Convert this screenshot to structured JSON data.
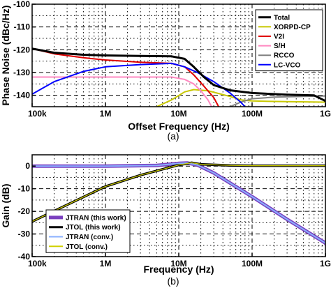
{
  "chart_data": [
    {
      "type": "line",
      "caption": "(a)",
      "xlabel": "Offset Frequency (Hz)",
      "ylabel": "Phase Noise (dBc/Hz)",
      "xscale": "log",
      "xlim": [
        100000,
        1000000000
      ],
      "ylim": [
        -145,
        -100
      ],
      "xticks": [
        {
          "value": 100000,
          "label": "100k"
        },
        {
          "value": 1000000,
          "label": "1M"
        },
        {
          "value": 10000000,
          "label": "10M"
        },
        {
          "value": 100000000,
          "label": "100M"
        },
        {
          "value": 1000000000,
          "label": "1G"
        }
      ],
      "yticks": [
        {
          "value": -100,
          "label": "-100"
        },
        {
          "value": -110,
          "label": "-110"
        },
        {
          "value": -120,
          "label": "-120"
        },
        {
          "value": -130,
          "label": "-130"
        },
        {
          "value": -140,
          "label": "-140"
        }
      ],
      "grid": true,
      "legend_position": "top-right",
      "series": [
        {
          "name": "Total",
          "color": "#000000",
          "points": [
            [
              100000,
              -119.5
            ],
            [
              200000,
              -121.3
            ],
            [
              500000,
              -122.2
            ],
            [
              1000000,
              -122.5
            ],
            [
              3000000,
              -122.7
            ],
            [
              8000000,
              -122.9
            ],
            [
              12000000,
              -124
            ],
            [
              16000000,
              -127.5
            ],
            [
              22000000,
              -132
            ],
            [
              30000000,
              -135.5
            ],
            [
              50000000,
              -137.8
            ],
            [
              100000000,
              -139
            ],
            [
              300000000,
              -139.7
            ],
            [
              700000000,
              -140
            ],
            [
              1000000000,
              -142.5
            ]
          ]
        },
        {
          "name": "XORPD-CP",
          "color": "#c8c800",
          "points": [
            [
              5000000,
              -145
            ],
            [
              8000000,
              -142
            ],
            [
              12000000,
              -138.5
            ],
            [
              16000000,
              -137.5
            ],
            [
              25000000,
              -138
            ],
            [
              50000000,
              -140.5
            ],
            [
              70000000,
              -142
            ],
            [
              100000000,
              -142.5
            ],
            [
              300000000,
              -142.8
            ],
            [
              1000000000,
              -143
            ]
          ]
        },
        {
          "name": "V2I",
          "color": "#e00000",
          "points": [
            [
              100000,
              -119.5
            ],
            [
              200000,
              -121.8
            ],
            [
              500000,
              -123.5
            ],
            [
              1000000,
              -124.5
            ],
            [
              3000000,
              -125.5
            ],
            [
              8000000,
              -126
            ],
            [
              12000000,
              -127.5
            ],
            [
              16000000,
              -131
            ],
            [
              22000000,
              -136
            ],
            [
              30000000,
              -141
            ],
            [
              35000000,
              -145
            ]
          ]
        },
        {
          "name": "S/H",
          "color": "#ff88c0",
          "points": [
            [
              100000,
              -132
            ],
            [
              1000000,
              -132
            ],
            [
              8000000,
              -132
            ],
            [
              12000000,
              -133
            ],
            [
              16000000,
              -135
            ],
            [
              20000000,
              -138
            ],
            [
              25000000,
              -142
            ],
            [
              28000000,
              -145
            ]
          ]
        },
        {
          "name": "RCCO",
          "color": "#808080",
          "points": [
            [
              50000000,
              -145
            ],
            [
              70000000,
              -143
            ],
            [
              100000000,
              -141.5
            ],
            [
              200000000,
              -140.8
            ],
            [
              500000000,
              -140.5
            ],
            [
              1000000000,
              -140.3
            ]
          ]
        },
        {
          "name": "LC-VCO",
          "color": "#0000ff",
          "points": [
            [
              100000,
              -139.5
            ],
            [
              200000,
              -134
            ],
            [
              500000,
              -129.5
            ],
            [
              1000000,
              -127.5
            ],
            [
              3000000,
              -126.5
            ],
            [
              8000000,
              -126
            ],
            [
              12000000,
              -127.5
            ],
            [
              18000000,
              -130
            ],
            [
              30000000,
              -134
            ],
            [
              50000000,
              -139
            ],
            [
              70000000,
              -143
            ],
            [
              80000000,
              -145
            ]
          ]
        }
      ]
    },
    {
      "type": "line",
      "caption": "(b)",
      "xlabel": "Frequency (Hz)",
      "ylabel": "Gain (dB)",
      "xscale": "log",
      "xlim": [
        100000,
        1000000000
      ],
      "ylim": [
        -40,
        5
      ],
      "xticks": [
        {
          "value": 100000,
          "label": "100k"
        },
        {
          "value": 1000000,
          "label": "1M"
        },
        {
          "value": 10000000,
          "label": "10M"
        },
        {
          "value": 100000000,
          "label": "100M"
        },
        {
          "value": 1000000000,
          "label": "1G"
        }
      ],
      "yticks": [
        {
          "value": 0,
          "label": "0"
        },
        {
          "value": -10,
          "label": "-10"
        },
        {
          "value": -20,
          "label": "-20"
        },
        {
          "value": -30,
          "label": "-30"
        },
        {
          "value": -40,
          "label": "-40"
        }
      ],
      "grid": true,
      "legend_position": "bottom-left",
      "series": [
        {
          "name": "JTRAN (this work)",
          "color": "#7a3fbf",
          "points": [
            [
              100000,
              0
            ],
            [
              1000000,
              0
            ],
            [
              5000000,
              0.3
            ],
            [
              10000000,
              1.2
            ],
            [
              13000000,
              1.4
            ],
            [
              18000000,
              0.5
            ],
            [
              30000000,
              -3
            ],
            [
              100000000,
              -13.5
            ],
            [
              300000000,
              -23.5
            ],
            [
              1000000000,
              -34
            ],
            [
              1200000000,
              -39
            ]
          ]
        },
        {
          "name": "JTOL (this work)",
          "color": "#000000",
          "points": [
            [
              100000,
              -24.5
            ],
            [
              1000000,
              -9
            ],
            [
              3000000,
              -4
            ],
            [
              10000000,
              0.5
            ],
            [
              15000000,
              1.5
            ],
            [
              20000000,
              0.8
            ],
            [
              50000000,
              0.3
            ],
            [
              100000000,
              0.2
            ],
            [
              1000000000,
              0.2
            ]
          ]
        },
        {
          "name": "JTRAN (conv.)",
          "color": "#8ab0ff",
          "points": [
            [
              100000,
              0
            ],
            [
              1000000,
              0
            ],
            [
              5000000,
              0.3
            ],
            [
              10000000,
              1.2
            ],
            [
              13000000,
              1.4
            ],
            [
              18000000,
              0.5
            ],
            [
              30000000,
              -3
            ],
            [
              100000000,
              -13.5
            ],
            [
              300000000,
              -23.5
            ],
            [
              1000000000,
              -34
            ],
            [
              1200000000,
              -39
            ]
          ]
        },
        {
          "name": "JTOL (conv.)",
          "color": "#d0d000",
          "points": [
            [
              100000,
              -24.5
            ],
            [
              1000000,
              -9
            ],
            [
              3000000,
              -4
            ],
            [
              10000000,
              0.5
            ],
            [
              15000000,
              1.5
            ],
            [
              20000000,
              0.8
            ],
            [
              50000000,
              0.3
            ],
            [
              100000000,
              0.2
            ],
            [
              1000000000,
              0.2
            ]
          ]
        }
      ]
    }
  ]
}
